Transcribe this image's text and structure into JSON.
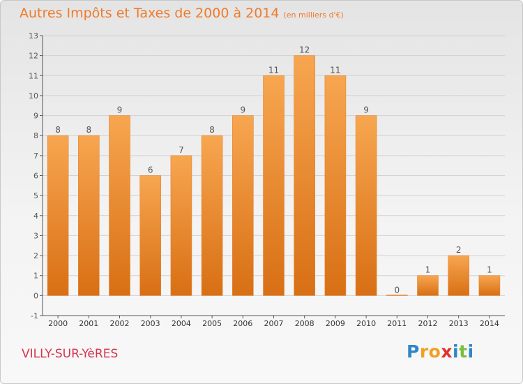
{
  "header": {
    "title": "Autres Impôts et Taxes de 2000 à 2014",
    "unit": "(en milliers d'€)"
  },
  "footer": {
    "city": "VILLY-SUR-YèRES",
    "logo": {
      "letters": [
        "P",
        "r",
        "o",
        "x",
        "i",
        "t",
        "i"
      ],
      "colors": [
        "#2f86c8",
        "#f0a020",
        "#f0a020",
        "#e03030",
        "#2f86c8",
        "#7bbf3c",
        "#2f86c8"
      ]
    }
  },
  "chart_data": {
    "type": "bar",
    "categories": [
      "2000",
      "2001",
      "2002",
      "2003",
      "2004",
      "2005",
      "2006",
      "2007",
      "2008",
      "2009",
      "2010",
      "2011",
      "2012",
      "2013",
      "2014"
    ],
    "values": [
      8,
      8,
      9,
      6,
      7,
      8,
      9,
      11,
      12,
      11,
      9,
      0,
      1,
      2,
      1
    ],
    "data_labels": [
      "8",
      "8",
      "9",
      "6",
      "7",
      "8",
      "9",
      "11",
      "12",
      "11",
      "9",
      "0",
      "1",
      "2",
      "1"
    ],
    "title": "Autres Impôts et Taxes de 2000 à 2014",
    "ylim": [
      -1,
      13
    ],
    "yticks": [
      "-1",
      "0",
      "1",
      "2",
      "3",
      "4",
      "5",
      "6",
      "7",
      "8",
      "9",
      "10",
      "11",
      "12",
      "13"
    ],
    "grid": true,
    "colors": {
      "bar_light": "#f7a650",
      "bar_dark": "#d86f14",
      "label": "#555555",
      "axis": "#555555"
    }
  }
}
